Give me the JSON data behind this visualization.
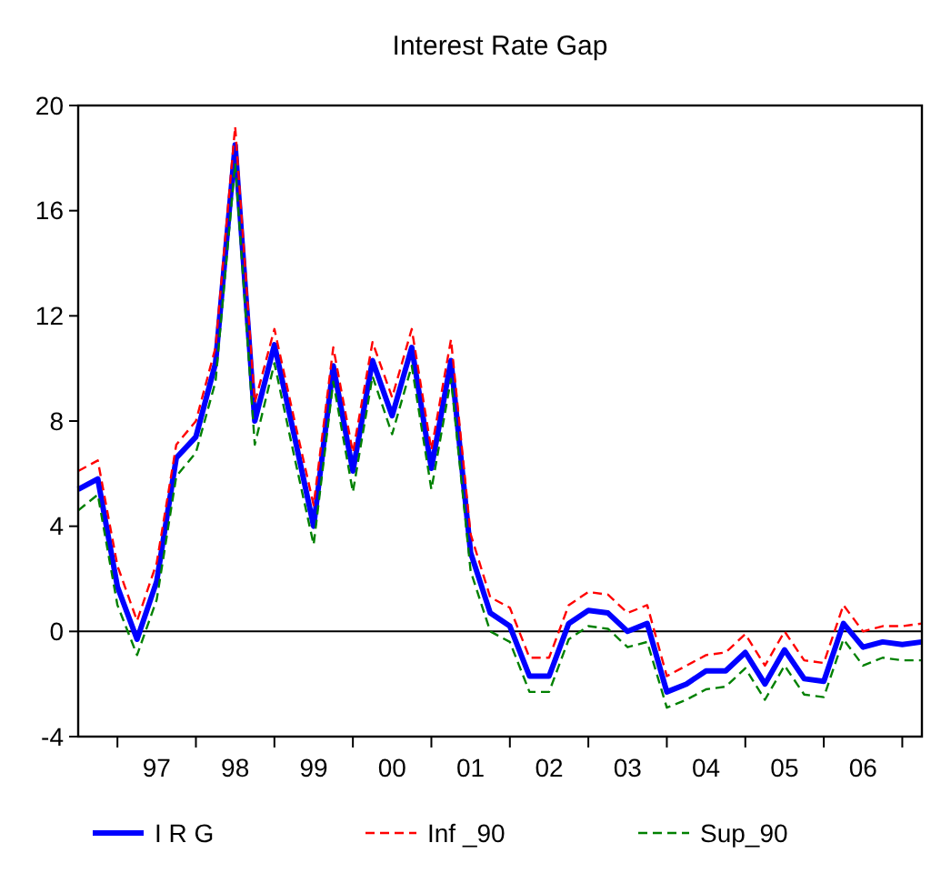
{
  "chart_data": {
    "type": "line",
    "title": "Interest Rate Gap",
    "categories": [
      null,
      null,
      null,
      null,
      "97",
      null,
      null,
      null,
      "98",
      null,
      null,
      null,
      "99",
      null,
      null,
      null,
      "00",
      null,
      null,
      null,
      "01",
      null,
      null,
      null,
      "02",
      null,
      null,
      null,
      "03",
      null,
      null,
      null,
      "04",
      null,
      null,
      null,
      "05",
      null,
      null,
      null,
      "06",
      null,
      null,
      null
    ],
    "series": [
      {
        "name": "I R G",
        "color": "#0000ff",
        "line_style": "solid",
        "values": [
          5.4,
          5.8,
          1.7,
          -0.3,
          1.9,
          6.6,
          7.4,
          10.2,
          18.5,
          8.0,
          10.9,
          7.5,
          4.0,
          10.1,
          6.1,
          10.3,
          8.2,
          10.8,
          6.2,
          10.3,
          3.0,
          0.7,
          0.2,
          -1.7,
          -1.7,
          0.3,
          0.8,
          0.7,
          0.0,
          0.3,
          -2.3,
          -2.0,
          -1.5,
          -1.5,
          -0.8,
          -2.0,
          -0.7,
          -1.8,
          -1.9,
          0.3,
          -0.6,
          -0.4,
          -0.5,
          -0.4
        ]
      },
      {
        "name": "Inf _90",
        "color": "#ff0000",
        "line_style": "dashed",
        "values": [
          6.1,
          6.5,
          2.5,
          0.4,
          2.6,
          7.1,
          8.0,
          10.8,
          19.2,
          8.7,
          11.5,
          8.1,
          4.8,
          10.8,
          6.8,
          11.0,
          8.9,
          11.5,
          6.9,
          11.1,
          3.7,
          1.3,
          0.9,
          -1.0,
          -1.0,
          1.0,
          1.5,
          1.4,
          0.7,
          1.0,
          -1.7,
          -1.3,
          -0.9,
          -0.8,
          -0.1,
          -1.3,
          0.0,
          -1.1,
          -1.2,
          1.0,
          0.0,
          0.2,
          0.2,
          0.3
        ]
      },
      {
        "name": "Sup_90",
        "color": "#008000",
        "line_style": "dashed",
        "values": [
          4.6,
          5.2,
          1.0,
          -0.9,
          1.2,
          5.9,
          6.8,
          9.5,
          17.8,
          7.1,
          10.2,
          6.7,
          3.3,
          9.5,
          5.3,
          9.7,
          7.5,
          10.1,
          5.4,
          9.6,
          2.3,
          0.0,
          -0.4,
          -2.3,
          -2.3,
          -0.3,
          0.2,
          0.1,
          -0.6,
          -0.4,
          -2.9,
          -2.6,
          -2.2,
          -2.1,
          -1.4,
          -2.6,
          -1.3,
          -2.4,
          -2.5,
          -0.3,
          -1.3,
          -1.0,
          -1.1,
          -1.1
        ]
      }
    ],
    "ylim": [
      -4,
      20
    ],
    "yticks": [
      -4,
      0,
      4,
      8,
      12,
      16,
      20
    ],
    "ref_lines": [
      {
        "axis": "y",
        "value": 0,
        "color": "#000000"
      }
    ],
    "grid": false,
    "legend": "bottom",
    "marker": "none"
  }
}
